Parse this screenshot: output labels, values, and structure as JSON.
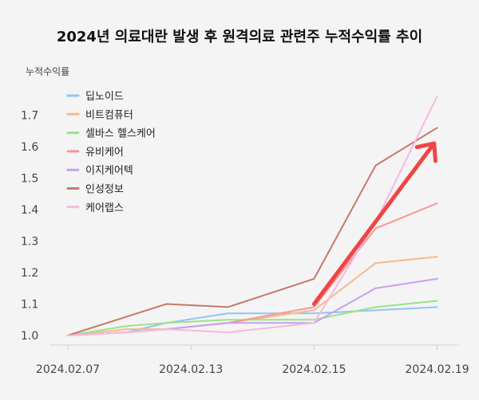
{
  "chart_data": {
    "type": "line",
    "title": "2024년 의료대란 발생 후 원격의료 관련주 누적수익률 추이",
    "ylabel": "누적수익률",
    "xlabel": "",
    "ylim": [
      1.0,
      1.78
    ],
    "y_ticks": [
      "1.0",
      "1.1",
      "1.2",
      "1.3",
      "1.4",
      "1.5",
      "1.6",
      "1.7"
    ],
    "x_tick_labels": [
      "2024.02.07",
      "2024.02.13",
      "2024.02.15",
      "2024.02.19"
    ],
    "x_tick_positions": [
      0,
      2,
      4,
      6
    ],
    "x_positions": [
      0,
      0.96,
      1.6,
      2.6,
      4.0,
      5.0,
      6.0
    ],
    "grid": false,
    "legend_position": "top-left",
    "series": [
      {
        "name": "딥노이드",
        "color": "#8ec5f5",
        "values": [
          1.0,
          1.01,
          1.04,
          1.07,
          1.07,
          1.08,
          1.09
        ]
      },
      {
        "name": "비트컴퓨터",
        "color": "#f9b98a",
        "values": [
          1.0,
          1.02,
          1.02,
          1.04,
          1.08,
          1.23,
          1.25
        ]
      },
      {
        "name": "셀바스 헬스케어",
        "color": "#9be38a",
        "values": [
          1.0,
          1.03,
          1.04,
          1.05,
          1.05,
          1.09,
          1.11
        ]
      },
      {
        "name": "유비케어",
        "color": "#f59a8f",
        "values": [
          1.0,
          1.01,
          1.02,
          1.04,
          1.09,
          1.34,
          1.42
        ]
      },
      {
        "name": "이지케어텍",
        "color": "#c8a0ee",
        "values": [
          1.0,
          1.01,
          1.02,
          1.04,
          1.04,
          1.15,
          1.18
        ]
      },
      {
        "name": "인성정보",
        "color": "#c7786a",
        "values": [
          1.0,
          1.06,
          1.1,
          1.09,
          1.18,
          1.54,
          1.66
        ]
      },
      {
        "name": "케어랩스",
        "color": "#f7b8de",
        "values": [
          1.0,
          1.01,
          1.02,
          1.01,
          1.04,
          1.36,
          1.76
        ]
      }
    ],
    "annotations": [
      {
        "type": "arrow",
        "color": "#f04545",
        "from": [
          4.0,
          1.1
        ],
        "to": [
          5.95,
          1.61
        ]
      }
    ]
  }
}
